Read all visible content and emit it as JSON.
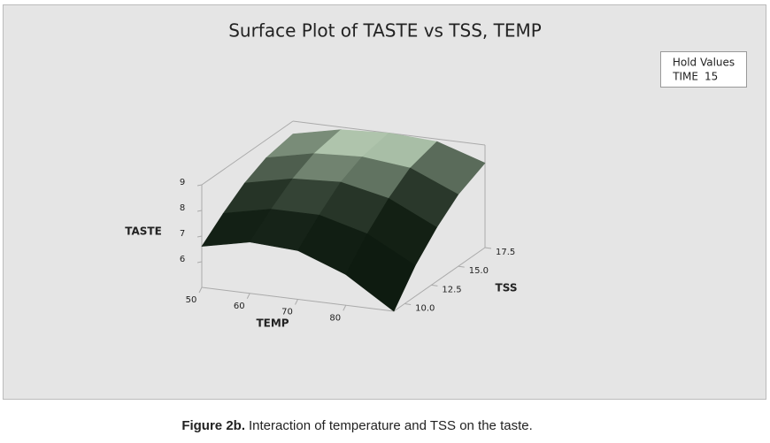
{
  "chart_data": {
    "type": "surface",
    "title": "Surface Plot of TASTE vs TSS, TEMP",
    "hold_values": {
      "title": "Hold Values",
      "label": "TIME",
      "value": 15
    },
    "x_label": "TEMP",
    "y_label": "TSS",
    "z_label": "TASTE",
    "x": [
      50,
      60,
      70,
      80,
      90
    ],
    "y": [
      9,
      11,
      13,
      15,
      17.5
    ],
    "z": [
      [
        6.6,
        7.0,
        6.9,
        6.2,
        5.0
      ],
      [
        7.3,
        7.7,
        7.7,
        7.2,
        6.2
      ],
      [
        7.9,
        8.3,
        8.4,
        8.0,
        7.1
      ],
      [
        8.3,
        8.7,
        8.8,
        8.6,
        7.8
      ],
      [
        8.5,
        8.9,
        9.0,
        8.9,
        8.3
      ]
    ],
    "xlim": [
      50,
      90
    ],
    "ylim": [
      9,
      17.5
    ],
    "zlim": [
      5,
      9
    ],
    "xticks": [
      50,
      60,
      70,
      80
    ],
    "yticks": [
      {
        "value": 10,
        "label": "10.0"
      },
      {
        "value": 12.5,
        "label": "12.5"
      },
      {
        "value": 15,
        "label": "15.0"
      },
      {
        "value": 17.5,
        "label": "17.5"
      }
    ],
    "zticks": [
      6,
      7,
      8,
      9
    ],
    "color_low": "#0e1b10",
    "color_high": "#d8f0d4"
  },
  "caption": {
    "label": "Figure 2b.",
    "text": "Interaction of temperature and TSS on the taste."
  }
}
